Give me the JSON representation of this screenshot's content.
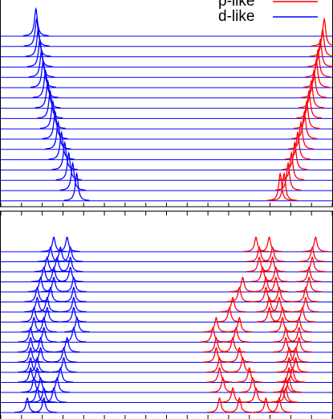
{
  "chart_data": {
    "type": "stacked-spectra",
    "series": [
      {
        "name": "p-like",
        "color": "#ff0000"
      },
      {
        "name": "d-like",
        "color": "#0000ff"
      }
    ],
    "xlim": [
      0,
      100
    ],
    "xticks": [
      0,
      6.25,
      12.5,
      18.75,
      25,
      31.25,
      37.5,
      43.75,
      50,
      56.25,
      62.5,
      68.75,
      75,
      81.25,
      87.5,
      93.75,
      100
    ],
    "panels": [
      {
        "traces": [
          [
            [],
            [
              10.6
            ]
          ],
          [
            [
              97.6
            ],
            [
              10.8
            ]
          ],
          [
            [
              97.1
            ],
            [
              11.3
            ]
          ],
          [
            [
              96.4
            ],
            [
              11.8
            ]
          ],
          [
            [
              95.7
            ],
            [
              12.3
            ]
          ],
          [
            [
              95.2
            ],
            [
              12.8
            ]
          ],
          [
            [
              94.5
            ],
            [
              13.5
            ]
          ],
          [
            [
              93.7
            ],
            [
              14.2
            ]
          ],
          [
            [
              93.0
            ],
            [
              14.9
            ]
          ],
          [
            [
              92.3
            ],
            [
              15.7
            ]
          ],
          [
            [
              91.6
            ],
            [
              16.4
            ]
          ],
          [
            [
              90.6
            ],
            [
              17.3
            ]
          ],
          [
            [
              89.6
            ],
            [
              18.3
            ]
          ],
          [
            [
              88.7
            ],
            [
              19.3
            ]
          ],
          [
            [
              87.7
            ],
            [
              20.5
            ]
          ],
          [
            [
              86.7
            ],
            [
              21.7
            ]
          ],
          [
            [
              85.5,
              84.3
            ],
            [
              22.9
            ]
          ]
        ]
      },
      {
        "traces": [
          [
            [
              77,
              81,
              95
            ],
            [
              16,
              20
            ]
          ],
          [
            [
              78,
              82,
              94
            ],
            [
              15,
              18,
              21
            ]
          ],
          [
            [
              78,
              82,
              94
            ],
            [
              14,
              17,
              21
            ]
          ],
          [
            [
              79,
              83,
              93
            ],
            [
              13,
              16,
              21
            ]
          ],
          [
            [
              73,
              80,
              83,
              93
            ],
            [
              12,
              16,
              22
            ]
          ],
          [
            [
              72,
              80,
              84,
              92
            ],
            [
              11,
              15,
              22
            ]
          ],
          [
            [
              70,
              81,
              84,
              92
            ],
            [
              11,
              14,
              22
            ]
          ],
          [
            [
              69,
              81,
              85,
              91
            ],
            [
              10,
              14,
              22
            ]
          ],
          [
            [
              65,
              72,
              85,
              90
            ],
            [
              10,
              13,
              23
            ]
          ],
          [
            [
              64,
              71,
              86,
              90
            ],
            [
              9,
              13,
              22
            ]
          ],
          [
            [
              65,
              70,
              86,
              90
            ],
            [
              9,
              12,
              20
            ]
          ],
          [
            [
              65,
              72,
              87,
              89
            ],
            [
              9,
              12,
              19
            ]
          ],
          [
            [
              66,
              73,
              87,
              89
            ],
            [
              9,
              11,
              19
            ]
          ],
          [
            [
              66,
              75,
              87,
              88
            ],
            [
              9,
              11,
              18
            ]
          ],
          [
            [
              67,
              76,
              86,
              87
            ],
            [
              10,
              12,
              17
            ]
          ],
          [
            [
              70,
              77,
              85,
              86
            ],
            [
              11,
              13,
              16
            ]
          ],
          [
            [
              66,
              72,
              80,
              84
            ],
            [
              8,
              13
            ]
          ]
        ]
      }
    ]
  }
}
